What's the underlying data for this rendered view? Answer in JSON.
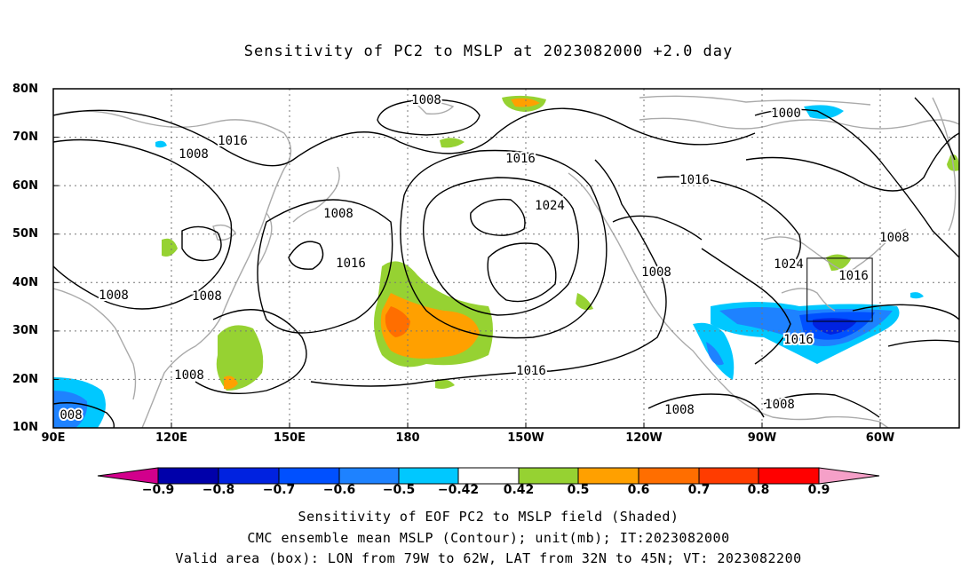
{
  "title": "Sensitivity of PC2 to MSLP at 2023082000 +2.0 day",
  "map": {
    "lat_labels": [
      "80N",
      "70N",
      "60N",
      "50N",
      "40N",
      "30N",
      "20N",
      "10N"
    ],
    "lon_labels": [
      "90E",
      "120E",
      "150E",
      "180",
      "150W",
      "120W",
      "90W",
      "60W"
    ],
    "contour_labels": [
      "1008",
      "1016",
      "1008",
      "1008",
      "1016",
      "1024",
      "1008",
      "1016",
      "1008",
      "1008",
      "1016",
      "1008",
      "1008",
      "1016",
      "1000",
      "1016",
      "1024",
      "1008",
      "1016",
      "1016",
      "1008",
      "008"
    ],
    "valid_box": {
      "lon_min": -79,
      "lon_max": -62,
      "lat_min": 32,
      "lat_max": 45
    },
    "colors": {
      "coast": "#aaaaaa",
      "contour": "#000000",
      "grid": "#777777"
    }
  },
  "colorbar": {
    "labels": [
      "−0.9",
      "−0.8",
      "−0.7",
      "−0.6",
      "−0.5",
      "−0.42",
      "0.42",
      "0.5",
      "0.6",
      "0.7",
      "0.8",
      "0.9"
    ],
    "colors": [
      "#0000aa",
      "#0022e0",
      "#0050ff",
      "#1e82ff",
      "#00c8ff",
      "#ffffff",
      "#96d232",
      "#ffa000",
      "#ff6e00",
      "#ff3c00",
      "#ff0000"
    ],
    "end_low_color": "#d2008c",
    "end_high_color": "#f5a0c8"
  },
  "captions": [
    "Sensitivity of EOF PC2 to MSLP field (Shaded)",
    "CMC ensemble mean MSLP (Contour); unit(mb); IT:2023082000",
    "Valid area (box): LON from 79W to 62W, LAT from 32N to 45N; VT: 2023082200"
  ]
}
